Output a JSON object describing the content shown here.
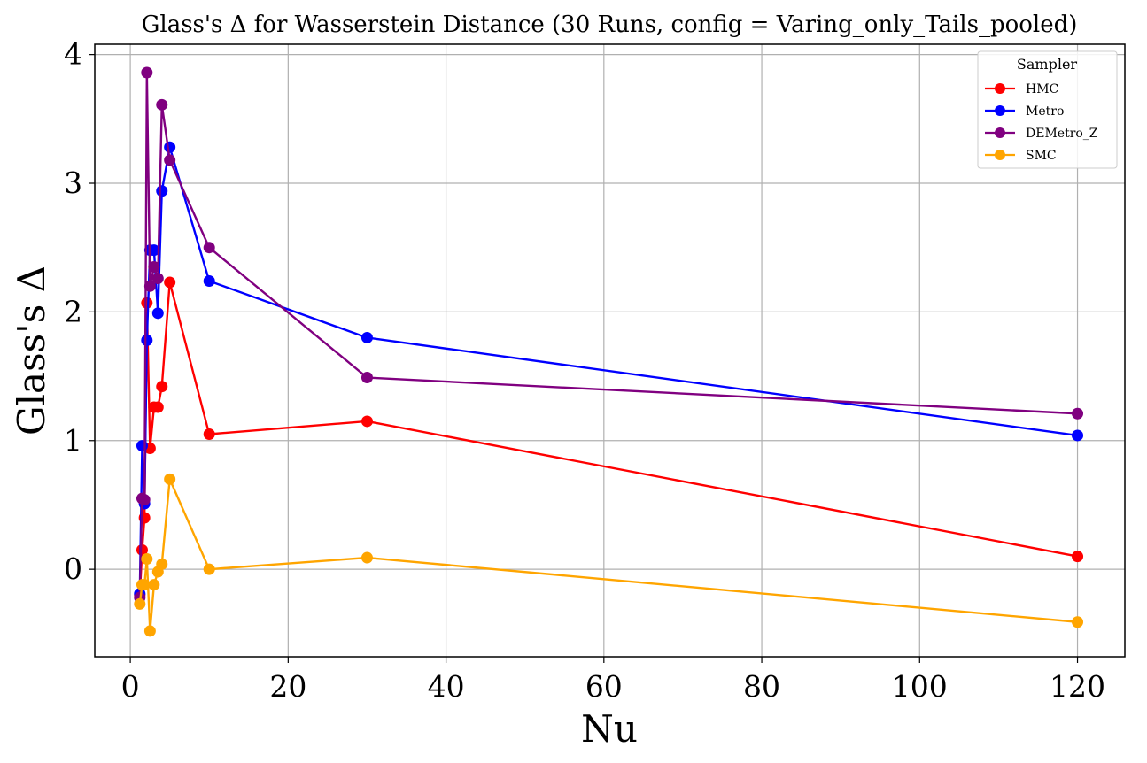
{
  "chart_data": {
    "type": "line",
    "title": "Glass's Δ for Wasserstein Distance (30 Runs, config = Varing_only_Tails_pooled)",
    "xlabel": "Nu",
    "ylabel": "Glass's Δ",
    "xlim": [
      -4.5,
      126
    ],
    "ylim": [
      -0.68,
      4.08
    ],
    "xticks": [
      0,
      20,
      40,
      60,
      80,
      100,
      120
    ],
    "yticks": [
      0,
      1,
      2,
      3,
      4
    ],
    "grid": true,
    "legend": {
      "title": "Sampler",
      "placement": "top-right"
    },
    "series": [
      {
        "name": "HMC",
        "color": "#ff0000",
        "x": [
          1.2,
          1.5,
          1.8,
          2.1,
          2.5,
          3.0,
          3.5,
          4.0,
          5.0,
          10.0,
          30.0,
          120.0
        ],
        "y": [
          -0.2,
          0.15,
          0.4,
          2.07,
          0.94,
          1.26,
          1.26,
          1.42,
          2.23,
          1.05,
          1.15,
          0.1
        ]
      },
      {
        "name": "Metro",
        "color": "#0000ff",
        "x": [
          1.2,
          1.5,
          1.8,
          2.1,
          2.5,
          3.0,
          3.5,
          4.0,
          5.0,
          10.0,
          30.0,
          120.0
        ],
        "y": [
          -0.19,
          0.96,
          0.51,
          1.78,
          2.48,
          2.48,
          1.99,
          2.94,
          3.28,
          2.24,
          1.8,
          1.04
        ]
      },
      {
        "name": "DEMetro_Z",
        "color": "#800080",
        "x": [
          1.2,
          1.5,
          1.8,
          2.1,
          2.5,
          3.0,
          3.5,
          4.0,
          5.0,
          10.0,
          30.0,
          120.0
        ],
        "y": [
          -0.22,
          0.55,
          0.54,
          3.86,
          2.2,
          2.35,
          2.26,
          3.61,
          3.18,
          2.5,
          1.49,
          1.21
        ]
      },
      {
        "name": "SMC",
        "color": "#ffa500",
        "x": [
          1.2,
          1.5,
          1.8,
          2.1,
          2.5,
          3.0,
          3.5,
          4.0,
          5.0,
          10.0,
          30.0,
          120.0
        ],
        "y": [
          -0.27,
          -0.12,
          -0.12,
          0.08,
          -0.48,
          -0.12,
          -0.02,
          0.04,
          0.7,
          0.0,
          0.09,
          -0.41
        ]
      }
    ]
  }
}
